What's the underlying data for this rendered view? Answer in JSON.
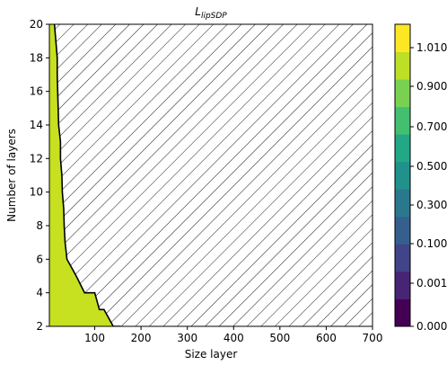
{
  "chart_data": {
    "type": "contour",
    "title": {
      "main": "L",
      "sub": "lipSDP"
    },
    "xlabel": "Size layer",
    "ylabel": "Number of layers",
    "xlim": [
      2,
      700
    ],
    "ylim": [
      2,
      20
    ],
    "xticks": [
      100,
      200,
      300,
      400,
      500,
      600,
      700
    ],
    "yticks": [
      2,
      4,
      6,
      8,
      10,
      12,
      14,
      16,
      18,
      20
    ],
    "filled_region": {
      "color": "#c7e020",
      "boundary": [
        {
          "x": 156,
          "y": 2
        },
        {
          "x": 140,
          "y": 2
        },
        {
          "x": 130,
          "y": 2.5
        },
        {
          "x": 120,
          "y": 3
        },
        {
          "x": 110,
          "y": 3
        },
        {
          "x": 100,
          "y": 4
        },
        {
          "x": 78,
          "y": 4
        },
        {
          "x": 60,
          "y": 5
        },
        {
          "x": 40,
          "y": 6
        },
        {
          "x": 36,
          "y": 7
        },
        {
          "x": 34,
          "y": 8
        },
        {
          "x": 33,
          "y": 9
        },
        {
          "x": 30,
          "y": 10
        },
        {
          "x": 29,
          "y": 11
        },
        {
          "x": 26,
          "y": 12
        },
        {
          "x": 26,
          "y": 13
        },
        {
          "x": 22,
          "y": 14
        },
        {
          "x": 21,
          "y": 15
        },
        {
          "x": 20,
          "y": 16
        },
        {
          "x": 19,
          "y": 17
        },
        {
          "x": 19,
          "y": 18
        },
        {
          "x": 16,
          "y": 19
        },
        {
          "x": 13,
          "y": 20
        }
      ]
    },
    "hatched_region": "remaining area (hatched)",
    "colorbar": {
      "labels": [
        "0.000",
        "0.001",
        "0.100",
        "0.300",
        "0.500",
        "0.700",
        "0.900",
        "1.010"
      ],
      "colors": [
        "#440154",
        "#482475",
        "#414487",
        "#355f8d",
        "#2a788e",
        "#21918c",
        "#22a884",
        "#44bf70",
        "#7ad151",
        "#bddf26",
        "#fde725"
      ]
    }
  }
}
